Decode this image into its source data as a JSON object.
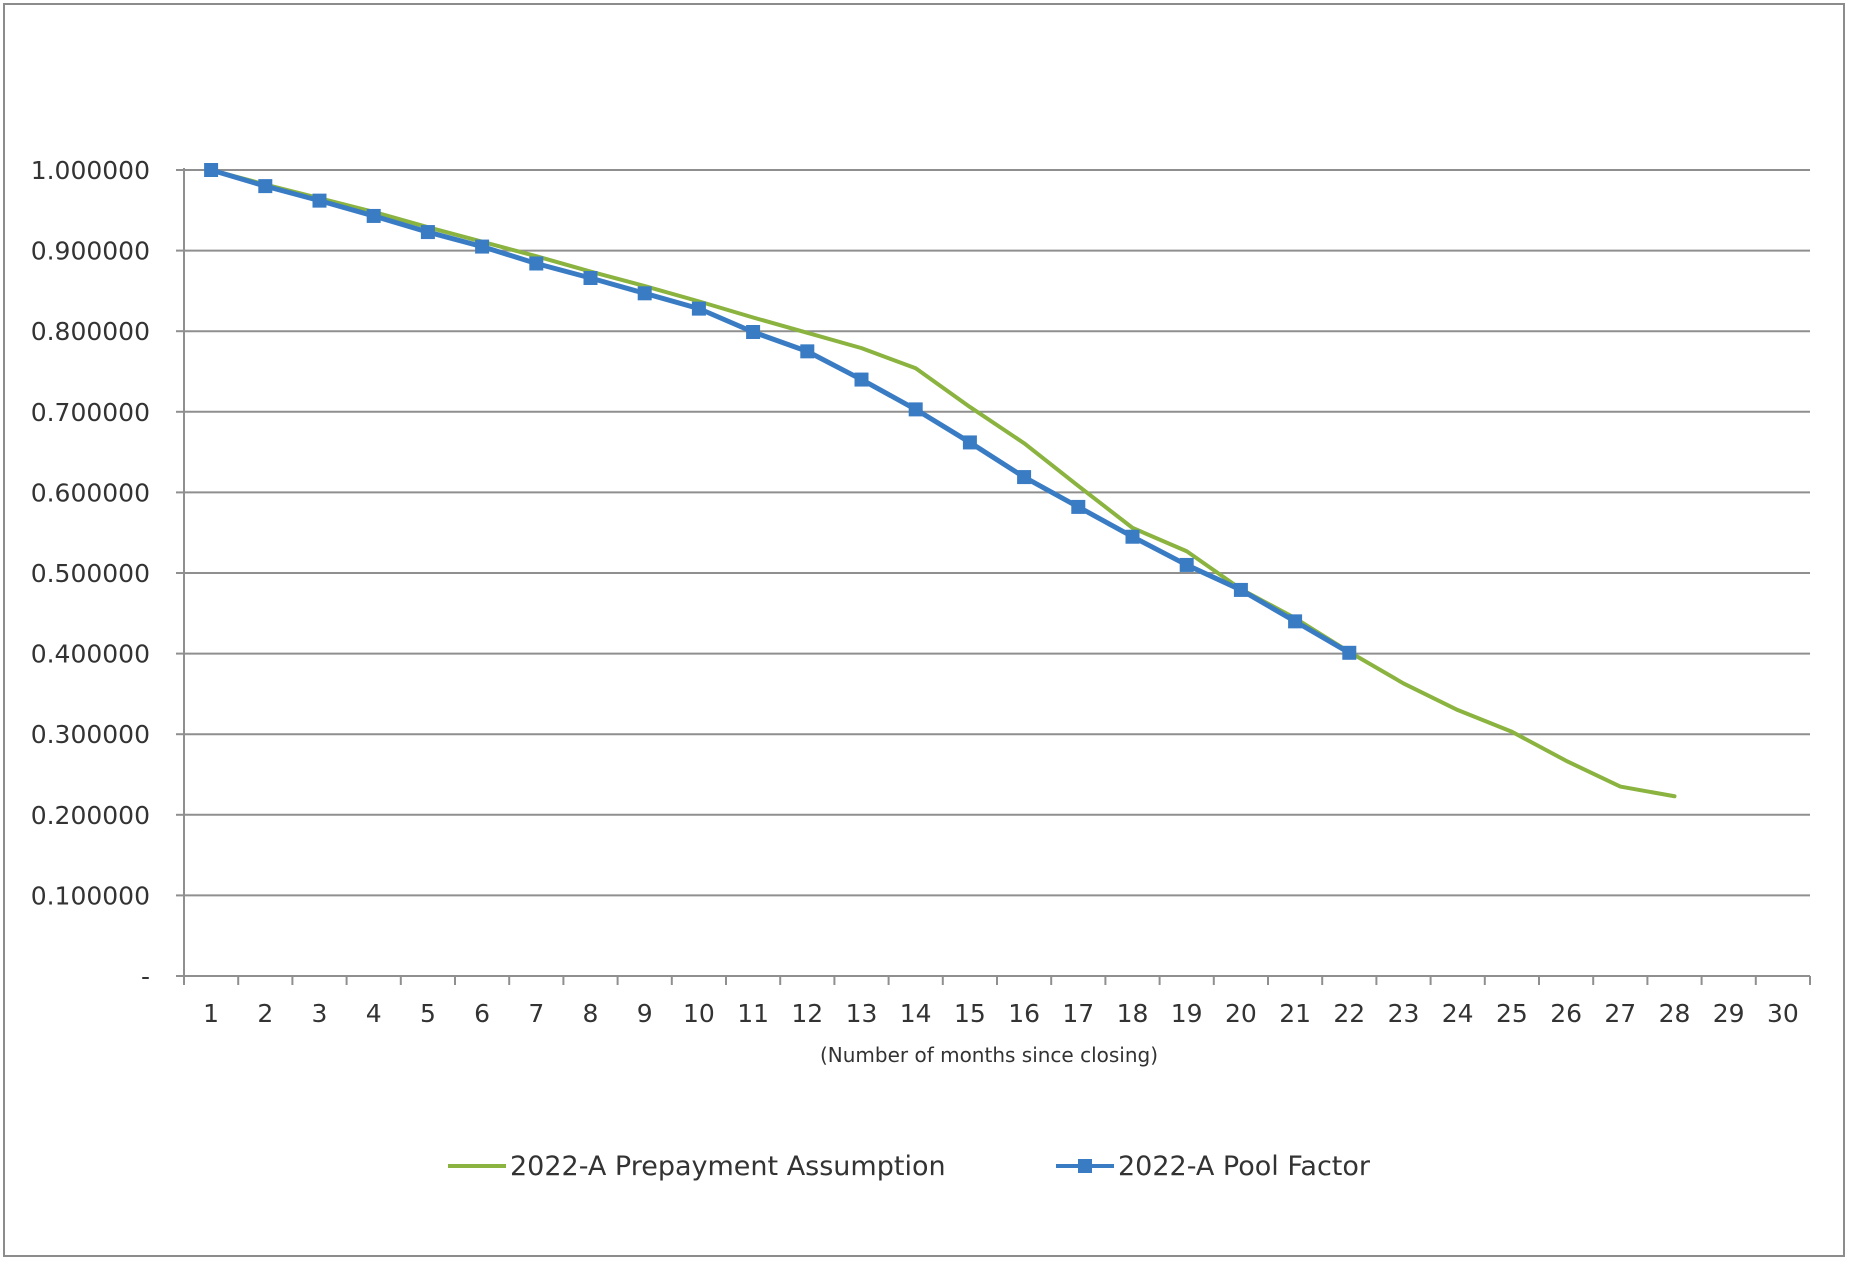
{
  "chart_data": {
    "type": "line",
    "title": "",
    "xlabel": "(Number of months since closing)",
    "ylabel": "",
    "x": [
      1,
      2,
      3,
      4,
      5,
      6,
      7,
      8,
      9,
      10,
      11,
      12,
      13,
      14,
      15,
      16,
      17,
      18,
      19,
      20,
      21,
      22,
      23,
      24,
      25,
      26,
      27,
      28,
      29,
      30
    ],
    "xlim": [
      1,
      30
    ],
    "ylim": [
      0,
      1.0
    ],
    "yticks": [
      0,
      0.1,
      0.2,
      0.3,
      0.4,
      0.5,
      0.6,
      0.7,
      0.8,
      0.9,
      1.0
    ],
    "ytick_labels": [
      "-",
      "0.100000",
      "0.200000",
      "0.300000",
      "0.400000",
      "0.500000",
      "0.600000",
      "0.700000",
      "0.800000",
      "0.900000",
      "1.000000"
    ],
    "grid": true,
    "legend_position": "bottom",
    "series": [
      {
        "name": "2022-A Prepayment Assumption",
        "color": "#8ab33f",
        "marker": "none",
        "x": [
          1,
          2,
          3,
          4,
          5,
          6,
          7,
          8,
          9,
          10,
          11,
          12,
          13,
          14,
          15,
          16,
          17,
          18,
          19,
          20,
          21,
          22,
          23,
          24,
          25,
          26,
          27,
          28
        ],
        "values": [
          1.0,
          0.982,
          0.965,
          0.948,
          0.929,
          0.911,
          0.893,
          0.874,
          0.856,
          0.837,
          0.817,
          0.798,
          0.779,
          0.754,
          0.706,
          0.661,
          0.608,
          0.556,
          0.527,
          0.48,
          0.444,
          0.402,
          0.363,
          0.33,
          0.303,
          0.267,
          0.235,
          0.223
        ]
      },
      {
        "name": "2022-A Pool Factor",
        "color": "#3a7cc4",
        "marker": "square",
        "x": [
          1,
          2,
          3,
          4,
          5,
          6,
          7,
          8,
          9,
          10,
          11,
          12,
          13,
          14,
          15,
          16,
          17,
          18,
          19,
          20,
          21,
          22
        ],
        "values": [
          1.0,
          0.98,
          0.962,
          0.943,
          0.923,
          0.905,
          0.884,
          0.866,
          0.847,
          0.828,
          0.799,
          0.775,
          0.74,
          0.703,
          0.662,
          0.619,
          0.582,
          0.545,
          0.51,
          0.479,
          0.44,
          0.401
        ]
      }
    ]
  }
}
